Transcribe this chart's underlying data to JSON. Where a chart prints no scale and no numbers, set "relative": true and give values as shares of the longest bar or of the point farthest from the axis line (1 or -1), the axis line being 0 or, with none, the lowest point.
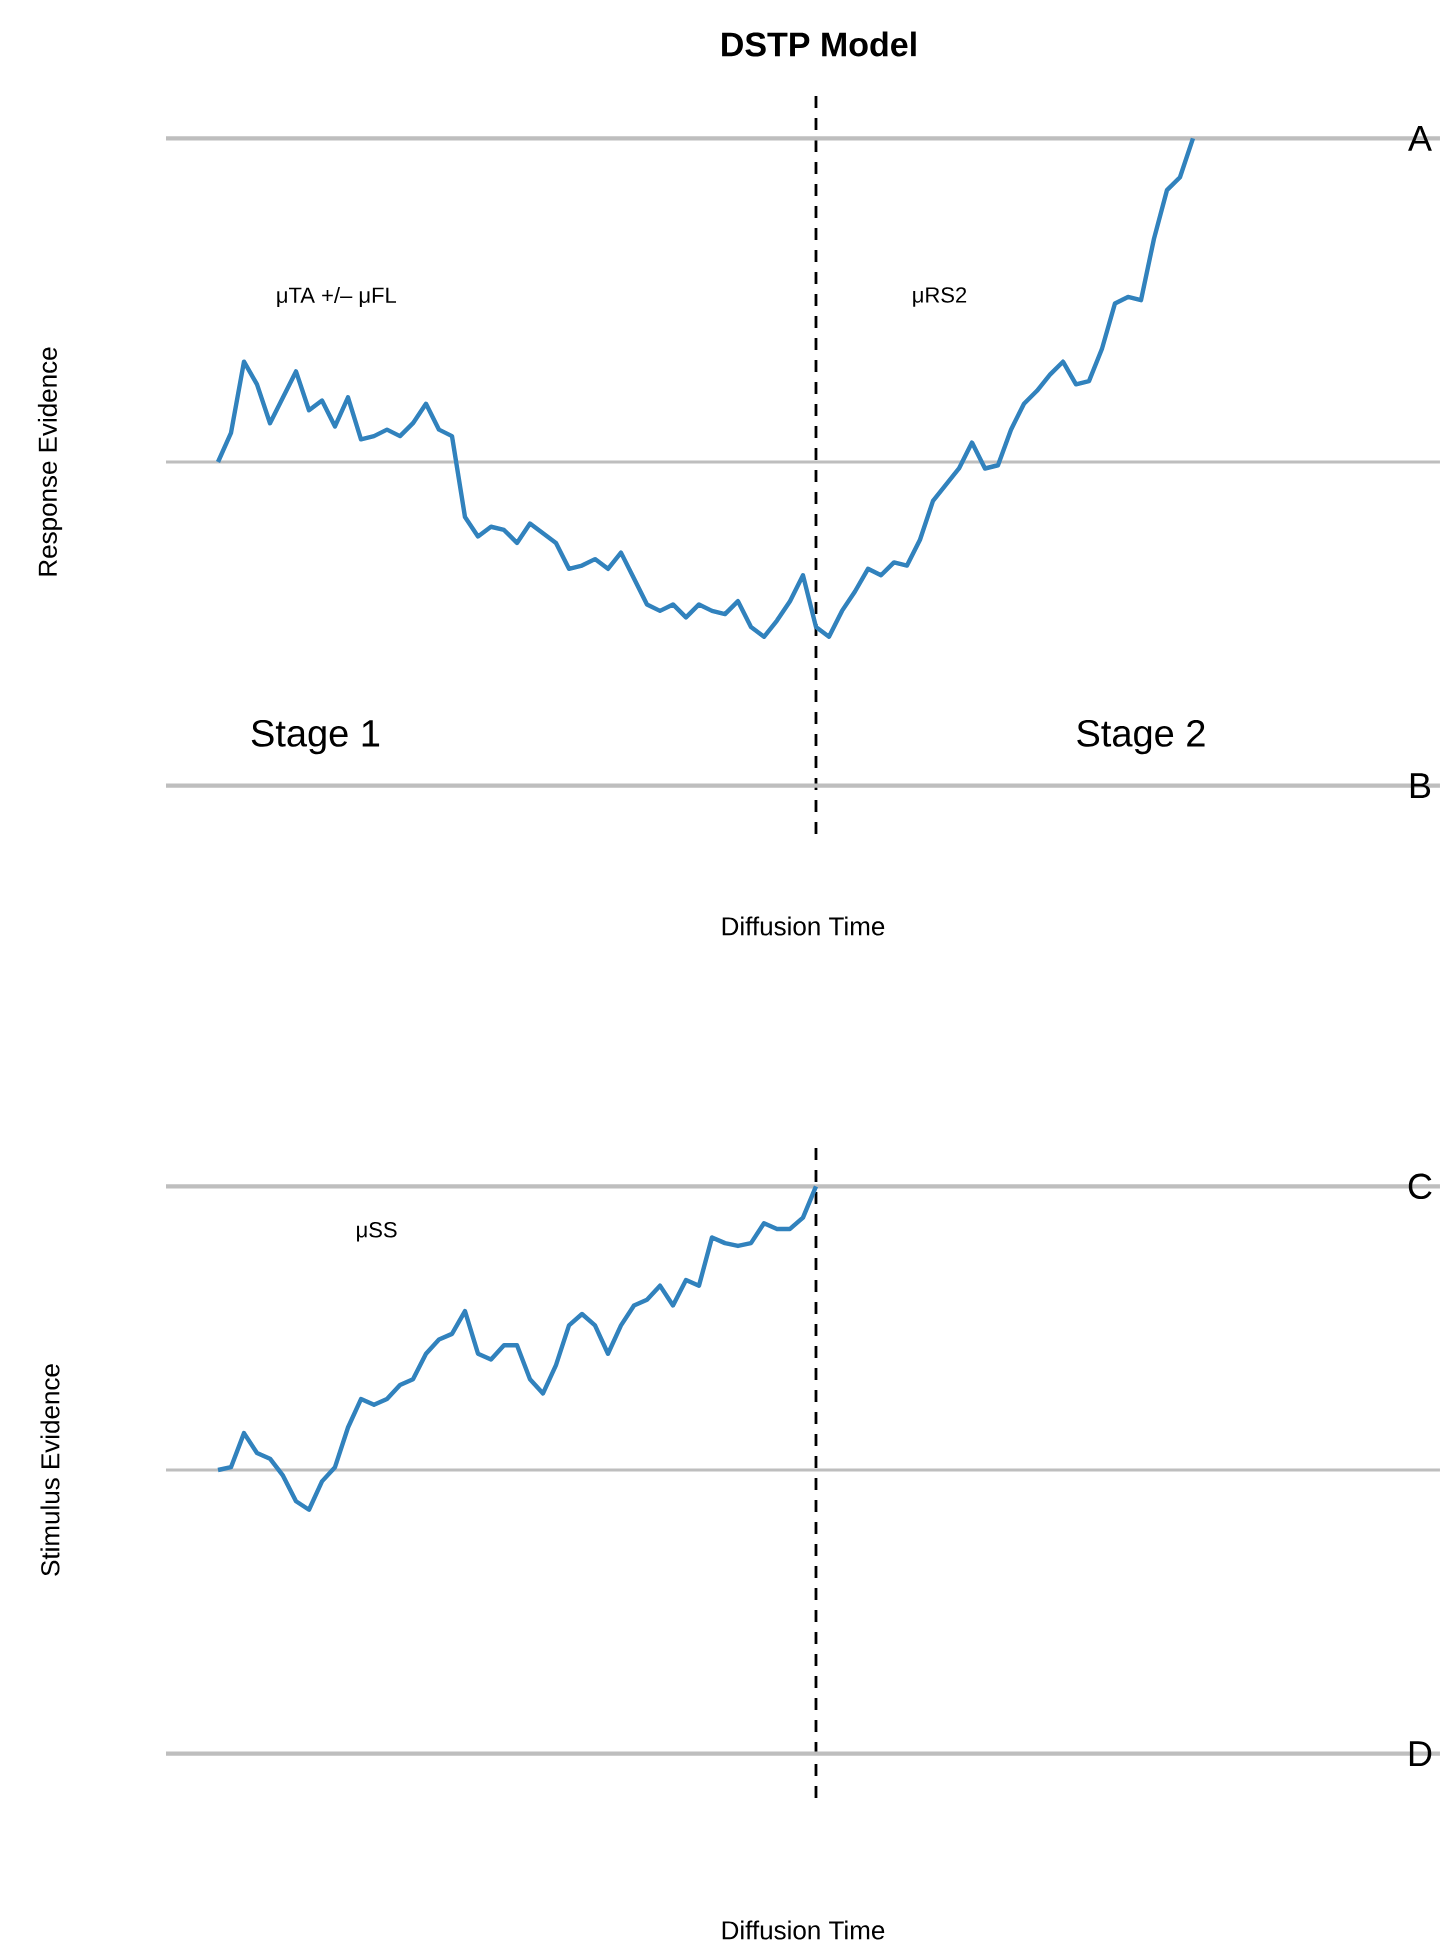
{
  "chart_data": [
    {
      "type": "line",
      "relative": true,
      "title": "DSTP Model",
      "xlabel": "Diffusion Time",
      "ylabel": "Response Evidence",
      "categories": [
        null,
        null,
        null,
        null,
        null,
        null,
        null,
        null,
        null,
        null,
        null,
        null,
        null,
        null,
        null,
        null,
        null,
        null,
        null,
        null,
        null,
        null,
        null,
        null,
        null,
        null,
        null,
        null,
        null,
        null,
        null,
        null,
        null,
        null,
        null,
        null,
        null,
        null,
        null,
        null,
        null,
        null,
        null,
        null,
        null,
        null,
        null,
        null,
        null,
        null,
        null,
        null,
        null,
        null,
        null,
        null,
        null,
        null,
        null,
        null,
        null,
        null,
        null,
        null,
        null,
        null,
        null,
        null,
        null,
        null,
        null,
        null,
        null,
        null,
        null,
        null,
        null,
        null,
        null,
        null,
        null,
        null,
        null,
        null,
        null,
        null,
        null,
        null,
        null,
        null,
        null,
        null,
        null,
        null,
        null,
        null,
        null,
        null,
        null
      ],
      "series": [
        {
          "color": "#3182bd",
          "values": [
            null,
            null,
            null,
            null,
            0,
            0.09,
            0.31,
            0.24,
            0.12,
            0.2,
            0.28,
            0.16,
            0.19,
            0.11,
            0.2,
            0.07,
            0.08,
            0.1,
            0.08,
            0.12,
            0.18,
            0.1,
            0.08,
            -0.17,
            -0.23,
            -0.2,
            -0.21,
            -0.25,
            -0.19,
            -0.22,
            -0.25,
            -0.33,
            -0.32,
            -0.3,
            -0.33,
            -0.28,
            -0.36,
            -0.44,
            -0.46,
            -0.44,
            -0.48,
            -0.44,
            -0.46,
            -0.47,
            -0.43,
            -0.51,
            -0.54,
            -0.49,
            -0.43,
            -0.35,
            -0.51,
            -0.54,
            -0.46,
            -0.4,
            -0.33,
            -0.35,
            -0.31,
            -0.32,
            -0.24,
            -0.12,
            -0.07,
            -0.02,
            0.06,
            -0.02,
            -0.01,
            0.1,
            0.18,
            0.22,
            0.27,
            0.31,
            0.24,
            0.25,
            0.35,
            0.49,
            0.51,
            0.5,
            0.69,
            0.84,
            0.88,
            1,
            null,
            null,
            null,
            null,
            null,
            null,
            null,
            null,
            null,
            null,
            null,
            null,
            null,
            null,
            null,
            null,
            null,
            null,
            null
          ]
        }
      ],
      "ref_lines": [
        {
          "axis": "y",
          "value": 1,
          "label": "A",
          "color": "#bebebe"
        },
        {
          "axis": "y",
          "value": 0,
          "color": "#bebebe"
        },
        {
          "axis": "y",
          "value": -1,
          "label": "B",
          "color": "#bebebe"
        }
      ],
      "annotations": [
        "μTA  +/–  μFL",
        "μRS2",
        "Stage 1",
        "Stage 2"
      ]
    },
    {
      "type": "line",
      "relative": true,
      "xlabel": "Diffusion Time",
      "ylabel": "Stimulus Evidence",
      "categories": [
        null,
        null,
        null,
        null,
        null,
        null,
        null,
        null,
        null,
        null,
        null,
        null,
        null,
        null,
        null,
        null,
        null,
        null,
        null,
        null,
        null,
        null,
        null,
        null,
        null,
        null,
        null,
        null,
        null,
        null,
        null,
        null,
        null,
        null,
        null,
        null,
        null,
        null,
        null,
        null,
        null,
        null,
        null,
        null,
        null,
        null,
        null,
        null,
        null,
        null,
        null,
        null,
        null,
        null,
        null,
        null,
        null,
        null,
        null,
        null,
        null,
        null,
        null,
        null,
        null,
        null,
        null,
        null,
        null,
        null,
        null,
        null,
        null,
        null,
        null,
        null,
        null,
        null,
        null,
        null,
        null,
        null,
        null,
        null,
        null,
        null,
        null,
        null,
        null,
        null,
        null,
        null,
        null,
        null,
        null,
        null,
        null,
        null,
        null
      ],
      "series": [
        {
          "color": "#3182bd",
          "values": [
            null,
            null,
            null,
            null,
            0,
            0.01,
            0.13,
            0.06,
            0.04,
            -0.02,
            -0.11,
            -0.14,
            -0.04,
            0.01,
            0.15,
            0.25,
            0.23,
            0.25,
            0.3,
            0.32,
            0.41,
            0.46,
            0.48,
            0.56,
            0.41,
            0.39,
            0.44,
            0.44,
            0.32,
            0.27,
            0.37,
            0.51,
            0.55,
            0.51,
            0.41,
            0.51,
            0.58,
            0.6,
            0.65,
            0.58,
            0.67,
            0.65,
            0.82,
            0.8,
            0.79,
            0.8,
            0.87,
            0.85,
            0.85,
            0.89,
            1,
            null,
            null,
            null,
            null,
            null,
            null,
            null,
            null,
            null,
            null,
            null,
            null,
            null,
            null,
            null,
            null,
            null,
            null,
            null,
            null,
            null,
            null,
            null,
            null,
            null,
            null,
            null,
            null,
            null,
            null,
            null,
            null,
            null,
            null,
            null,
            null,
            null,
            null,
            null,
            null,
            null,
            null,
            null,
            null,
            null,
            null,
            null,
            null
          ]
        }
      ],
      "ref_lines": [
        {
          "axis": "y",
          "value": 1,
          "label": "C",
          "color": "#bebebe"
        },
        {
          "axis": "y",
          "value": 0,
          "color": "#bebebe"
        },
        {
          "axis": "y",
          "value": -1,
          "label": "D",
          "color": "#bebebe"
        }
      ],
      "annotations": [
        "μSS"
      ]
    }
  ]
}
